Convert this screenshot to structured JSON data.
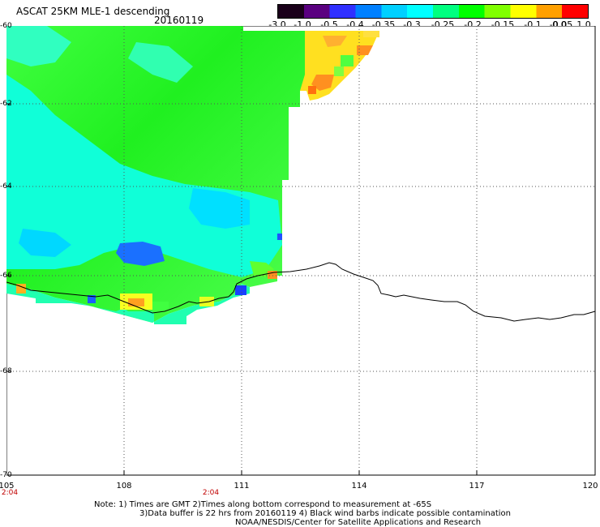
{
  "header": {
    "title": "ASCAT 25KM MLE-1 descending",
    "date": "20160119"
  },
  "colorbar": {
    "labels": [
      "-3.0",
      "-1.0",
      "-0.5",
      "-0.4",
      "-0.35",
      "-0.3",
      "-0.25",
      "-0.2",
      "-0.15",
      "-0.1",
      "-0.05",
      "0.0",
      "1.0"
    ],
    "colors": [
      "#1a001a",
      "#5a0080",
      "#3030ff",
      "#0080ff",
      "#00d0ff",
      "#00ffff",
      "#00ff80",
      "#00ff00",
      "#80ff00",
      "#ffff00",
      "#ffa000",
      "#ff0000"
    ]
  },
  "axes": {
    "lat_labels": [
      "-60",
      "-62",
      "-64",
      "-66",
      "-68",
      "-70"
    ],
    "lon_labels": [
      "105",
      "108",
      "111",
      "114",
      "117",
      "120"
    ],
    "time_labels": [
      "2:04",
      "2:04"
    ]
  },
  "notes": {
    "line1": "Note: 1) Times are GMT 2)Times along bottom correspond to measurement at -65S",
    "line2": "3)Data buffer is 22 hrs from 20160119 4) Black wind barbs indicate possible contamination",
    "line3": "NOAA/NESDIS/Center for Satellite Applications and Research"
  }
}
